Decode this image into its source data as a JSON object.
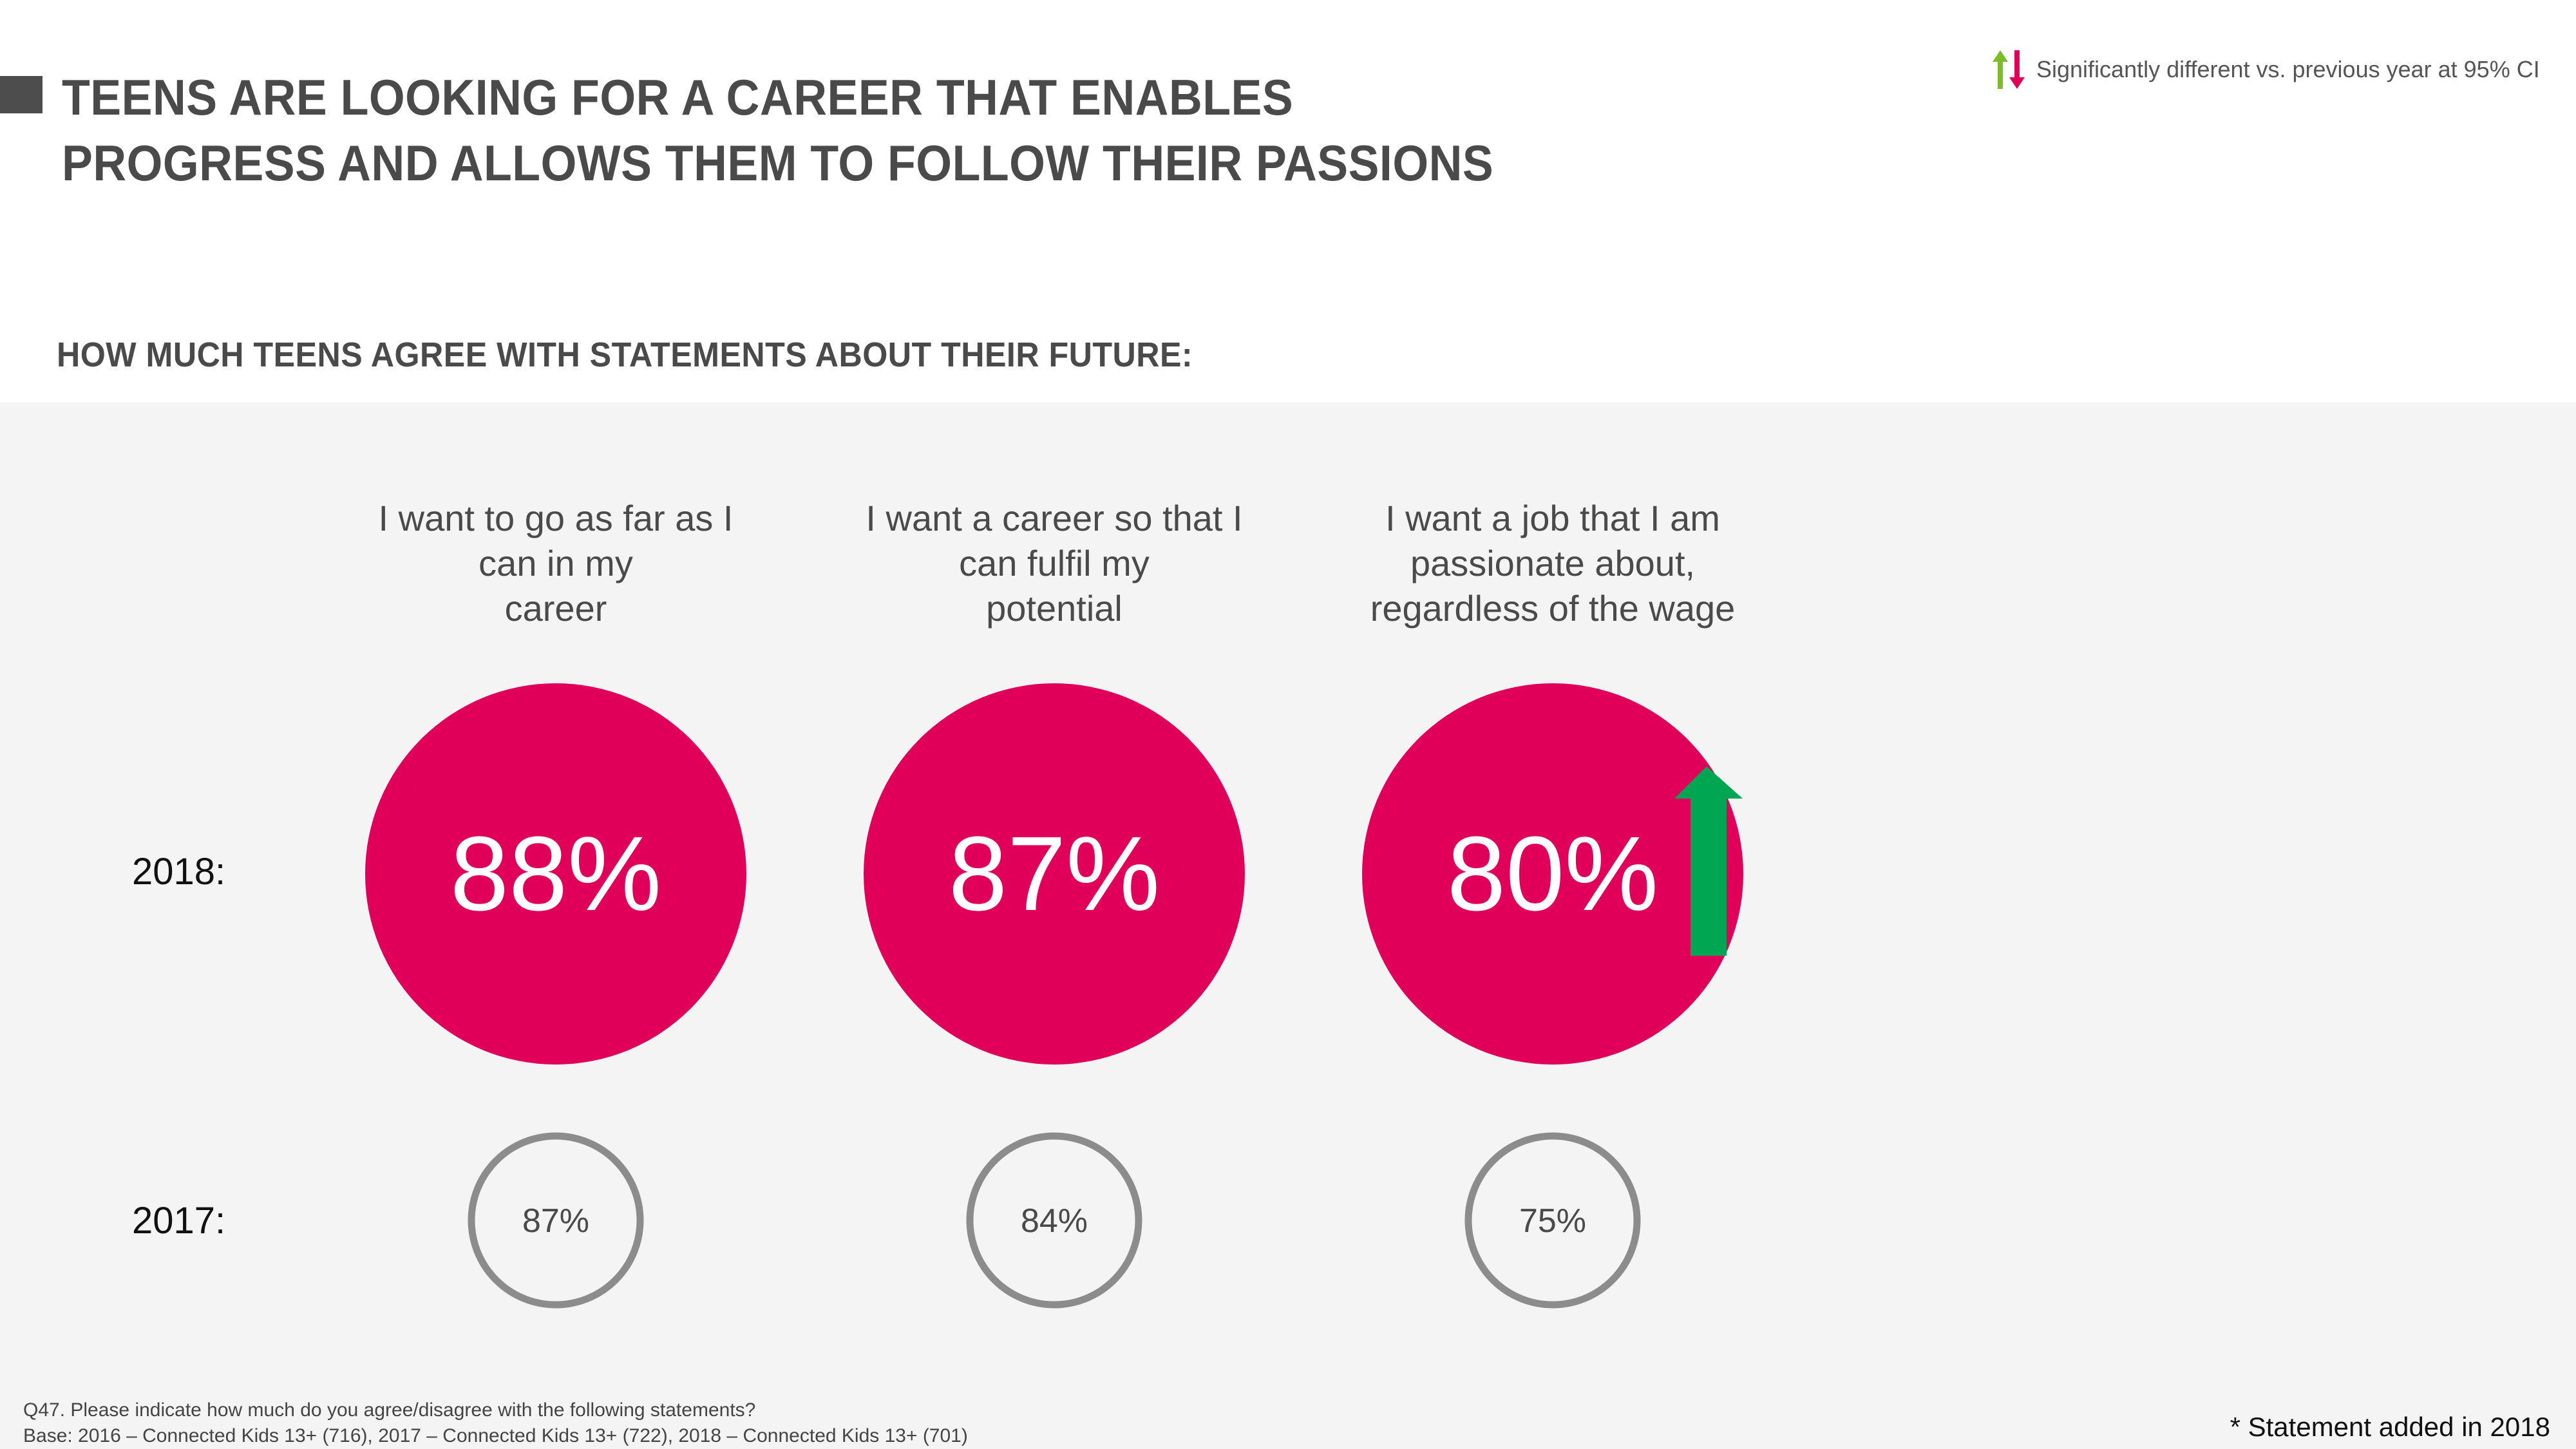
{
  "title": {
    "line1": "TEENS ARE LOOKING FOR A CAREER THAT ENABLES",
    "line2": "PROGRESS AND ALLOWS THEM TO FOLLOW THEIR PASSIONS"
  },
  "legend": {
    "text": "Significantly different vs. previous year at 95% CI",
    "up_color": "#7dbb2a",
    "down_color": "#e0005a"
  },
  "subtitle": "HOW MUCH TEENS AGREE WITH STATEMENTS ABOUT THEIR FUTURE:",
  "chart_data": {
    "type": "table",
    "rows": [
      "2018:",
      "2017:"
    ],
    "categories": [
      [
        "I want to go as far as I",
        "can in my",
        "career"
      ],
      [
        "I want a career so that I",
        "can fulfil my",
        "potential"
      ],
      [
        "I want a job that I am",
        "passionate about,",
        "regardless of the wage"
      ]
    ],
    "series": [
      {
        "name": "2018:",
        "values": [
          88,
          87,
          80
        ],
        "labels": [
          "88%",
          "87%",
          "80%"
        ]
      },
      {
        "name": "2017:",
        "values": [
          87,
          84,
          75
        ],
        "labels": [
          "87%",
          "84%",
          "75%"
        ]
      }
    ],
    "significant_increase": [
      false,
      false,
      true
    ],
    "colors": {
      "primary": "#e0005a",
      "previous_ring": "#8c8c8c",
      "increase_arrow": "#00a651"
    }
  },
  "footnote": {
    "question": "Q47. Please indicate how much do you agree/disagree with the following statements?",
    "base": "Base: 2016 – Connected Kids 13+ (716), 2017 – Connected Kids 13+ (722), 2018 – Connected Kids 13+ (701)"
  },
  "note": "* Statement added in 2018"
}
